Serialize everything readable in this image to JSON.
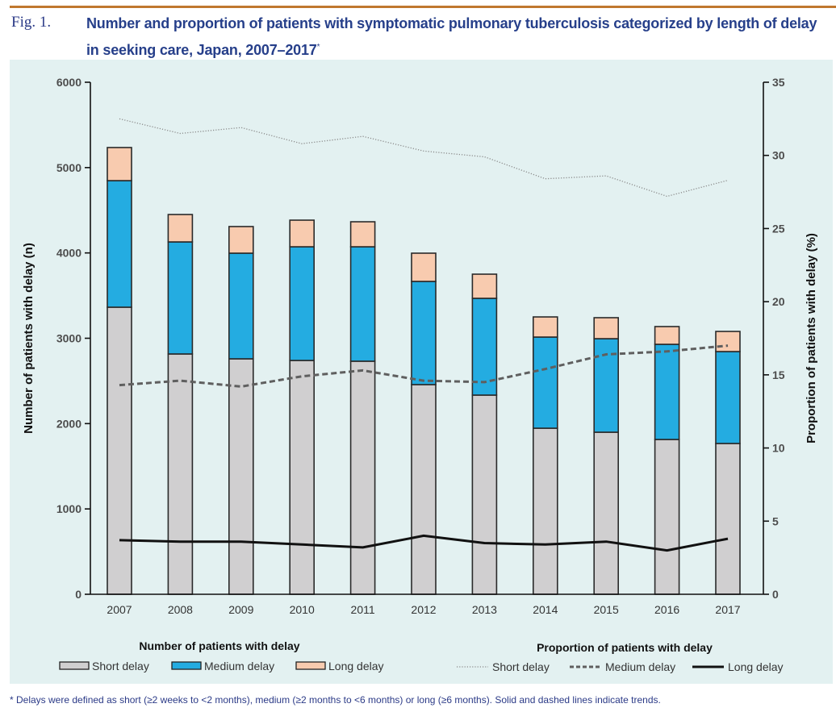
{
  "figure": {
    "label": "Fig. 1.",
    "title": "Number and proportion of patients with symptomatic pulmonary tuberculosis categorized by length of delay in seeking care, Japan, 2007–2017",
    "title_marker": "*",
    "footnote": "* Delays were defined as short (≥2 weeks to <2 months), medium (≥2 months to <6 months) or long (≥6 months). Solid and dashed lines indicate trends."
  },
  "legend": {
    "bars_title": "Number of patients with delay",
    "lines_title": "Proportion of patients with delay",
    "bar_items": [
      "Short delay",
      "Medium delay",
      "Long delay"
    ],
    "line_items": [
      "Short delay",
      "Medium delay",
      "Long delay"
    ]
  },
  "chart_data": {
    "type": "bar",
    "subtype": "stacked bar with line overlay (dual axis)",
    "title": "Number and proportion of patients with symptomatic pulmonary tuberculosis categorized by length of delay in seeking care, Japan, 2007–2017",
    "categories": [
      "2007",
      "2008",
      "2009",
      "2010",
      "2011",
      "2012",
      "2013",
      "2014",
      "2015",
      "2016",
      "2017"
    ],
    "ylabel": "Number of patients with delay (n)",
    "y2label": "Proportion of patients with delay (%)",
    "ylim": [
      0,
      6000
    ],
    "y2lim": [
      0,
      35
    ],
    "yticks": [
      0,
      1000,
      2000,
      3000,
      4000,
      5000,
      6000
    ],
    "y2ticks": [
      0,
      5,
      10,
      15,
      20,
      25,
      30,
      35
    ],
    "grid": false,
    "legend_position": "bottom",
    "bar_series": [
      {
        "name": "Short delay",
        "color": "#d0cfd0",
        "values": [
          3364,
          2816,
          2759,
          2740,
          2731,
          2457,
          2334,
          1946,
          1899,
          1814,
          1767
        ]
      },
      {
        "name": "Medium delay",
        "color": "#24ace1",
        "values": [
          1483,
          1313,
          1238,
          1332,
          1341,
          1209,
          1134,
          1068,
          1096,
          1115,
          1077
        ]
      },
      {
        "name": "Long delay",
        "color": "#f8cbaf",
        "values": [
          388,
          321,
          312,
          312,
          293,
          331,
          283,
          236,
          246,
          208,
          236
        ]
      }
    ],
    "line_series": [
      {
        "name": "Short delay",
        "style": "dotted",
        "color": "#8a8a8a",
        "axis": "right",
        "values": [
          32.5,
          31.5,
          31.9,
          30.8,
          31.3,
          30.3,
          29.9,
          28.4,
          28.6,
          27.2,
          28.3
        ]
      },
      {
        "name": "Medium delay",
        "style": "dashed",
        "color": "#5f5f5f",
        "axis": "right",
        "values": [
          14.3,
          14.6,
          14.2,
          14.9,
          15.3,
          14.6,
          14.5,
          15.4,
          16.4,
          16.6,
          17.0
        ]
      },
      {
        "name": "Long delay",
        "style": "solid",
        "color": "#111111",
        "axis": "right",
        "values": [
          3.7,
          3.6,
          3.6,
          3.4,
          3.2,
          4.0,
          3.5,
          3.4,
          3.6,
          3.0,
          3.8
        ]
      }
    ]
  }
}
